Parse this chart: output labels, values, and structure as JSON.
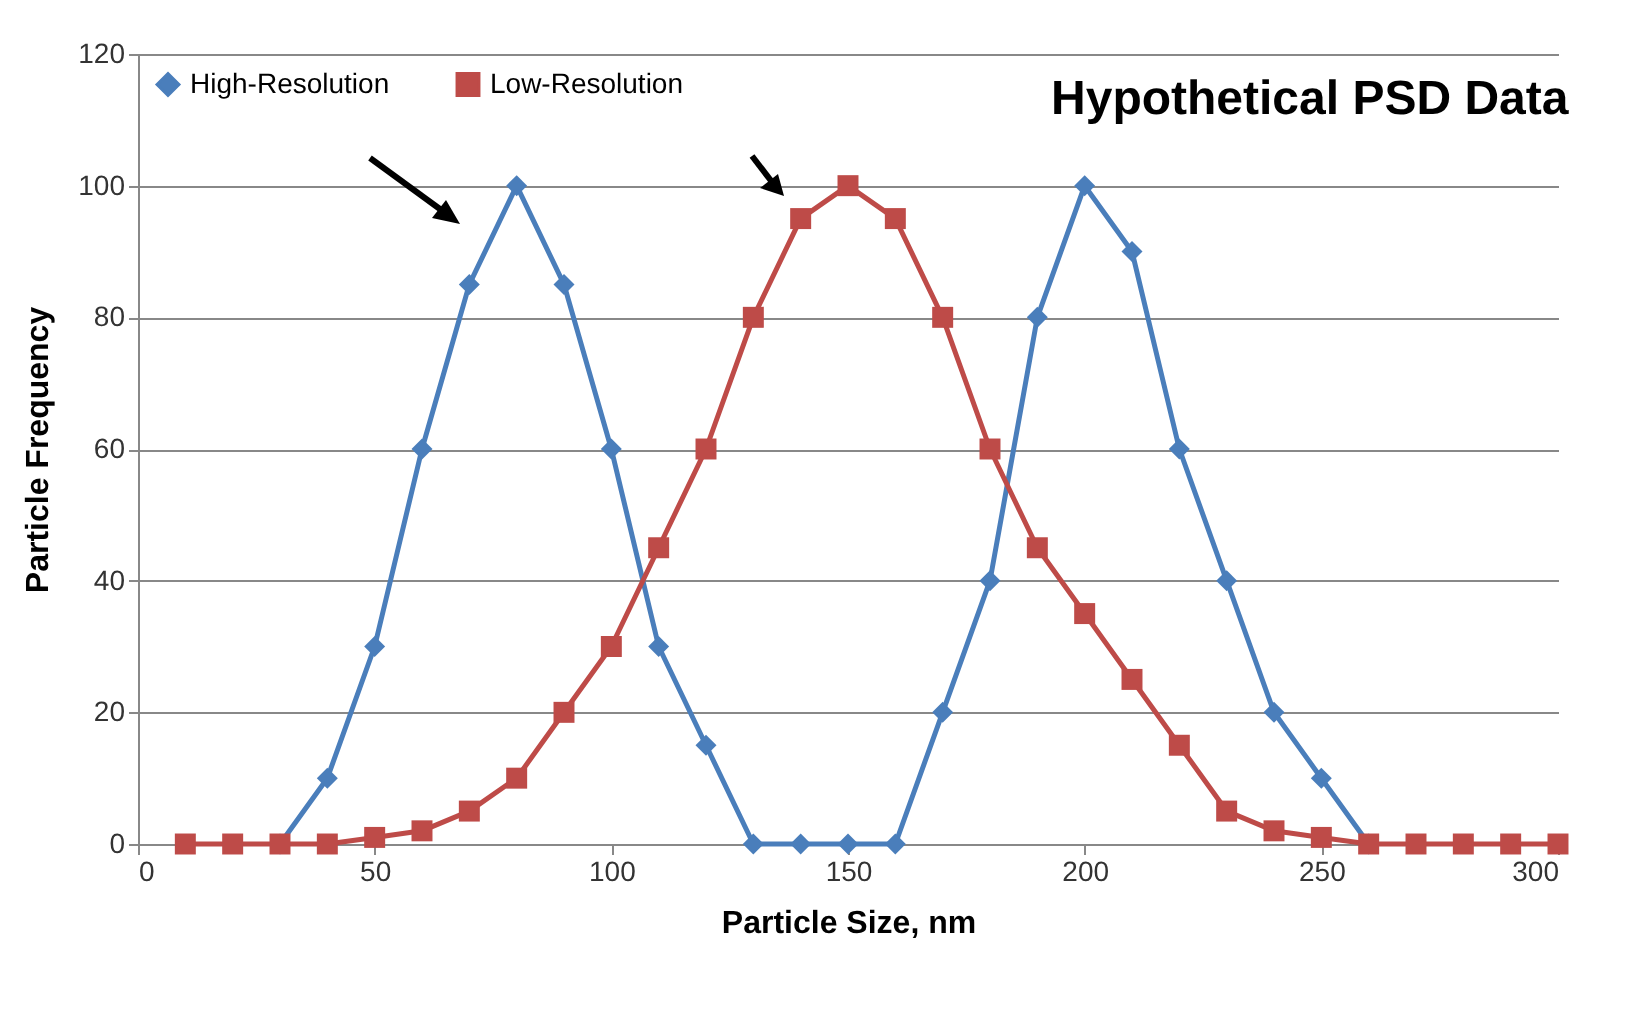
{
  "chart_data": {
    "type": "line",
    "title": "Hypothetical PSD Data",
    "xlabel": "Particle Size, nm",
    "ylabel": "Particle Frequency",
    "xlim": [
      0,
      300
    ],
    "xticks": [
      0,
      50,
      100,
      150,
      200,
      250,
      300
    ],
    "ylim": [
      0,
      120
    ],
    "yticks": [
      0,
      20,
      40,
      60,
      80,
      100,
      120
    ],
    "grid": "y",
    "legend": "top left",
    "series": [
      {
        "name": "High-Resolution",
        "color": "#4a7ebb",
        "marker": "diamond",
        "x": [
          30,
          40,
          50,
          60,
          70,
          80,
          90,
          100,
          110,
          120,
          130,
          140,
          150,
          160,
          170,
          180,
          190,
          200,
          210,
          220,
          230,
          240,
          250,
          260
        ],
        "values": [
          0,
          10,
          30,
          60,
          85,
          100,
          85,
          60,
          30,
          15,
          0,
          0,
          0,
          0,
          20,
          40,
          80,
          100,
          90,
          60,
          40,
          20,
          10,
          0
        ]
      },
      {
        "name": "Low-Resolution",
        "color": "#be4b48",
        "marker": "square",
        "x": [
          10,
          20,
          30,
          40,
          50,
          60,
          70,
          80,
          90,
          100,
          110,
          120,
          130,
          140,
          150,
          160,
          170,
          180,
          190,
          200,
          210,
          220,
          230,
          240,
          250,
          260,
          270,
          280,
          290,
          300
        ],
        "values": [
          0,
          0,
          0,
          0,
          1,
          2,
          5,
          10,
          20,
          30,
          45,
          60,
          80,
          95,
          100,
          95,
          80,
          60,
          45,
          35,
          25,
          15,
          5,
          2,
          1,
          0,
          0,
          0,
          0,
          0
        ]
      }
    ]
  }
}
